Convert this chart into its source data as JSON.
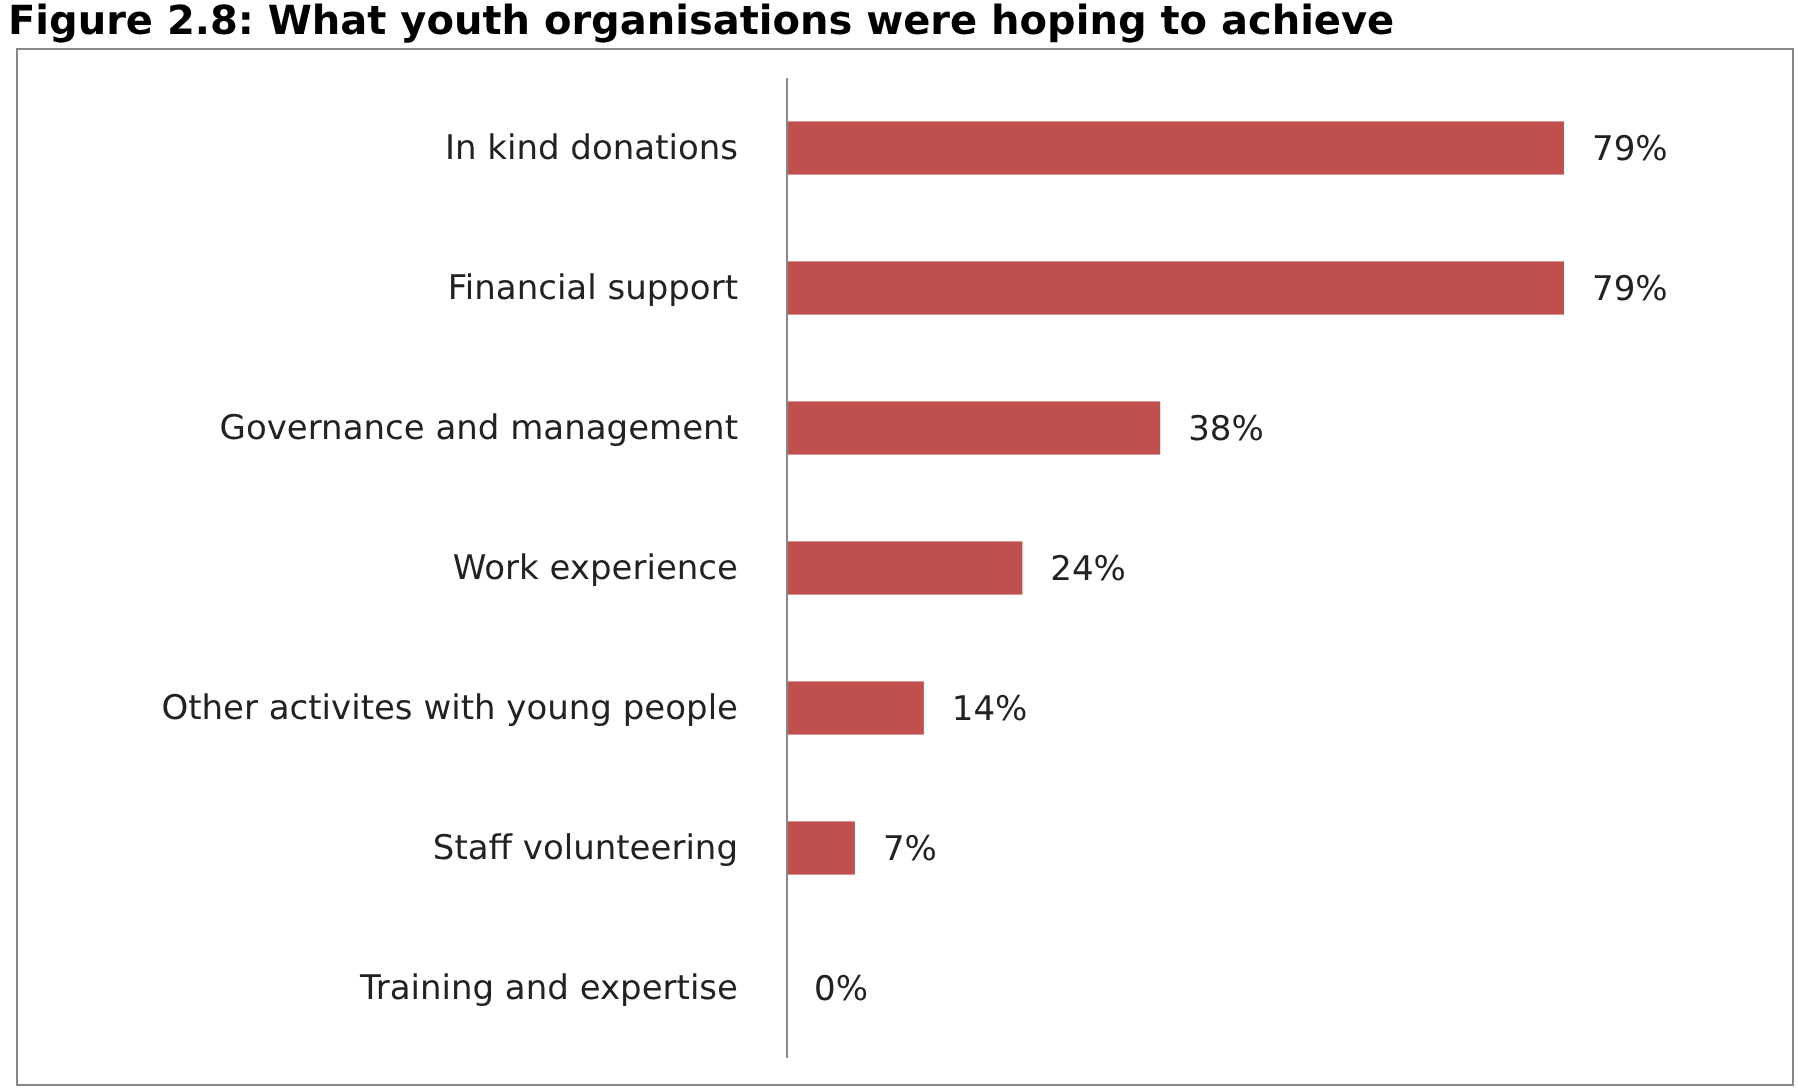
{
  "chart_data": {
    "type": "bar",
    "orientation": "horizontal",
    "title": "Figure 2.8: What youth organisations were hoping to achieve",
    "categories": [
      "In kind donations",
      "Financial support",
      "Governance and management",
      "Work experience",
      "Other activites with young people",
      "Staff volunteering",
      "Training and expertise"
    ],
    "values": [
      79,
      79,
      38,
      24,
      14,
      7,
      0
    ],
    "color": "#c0504d",
    "value_labels": [
      "79%",
      "79%",
      "38%",
      "24%",
      "14%",
      "7%",
      "0%"
    ]
  }
}
